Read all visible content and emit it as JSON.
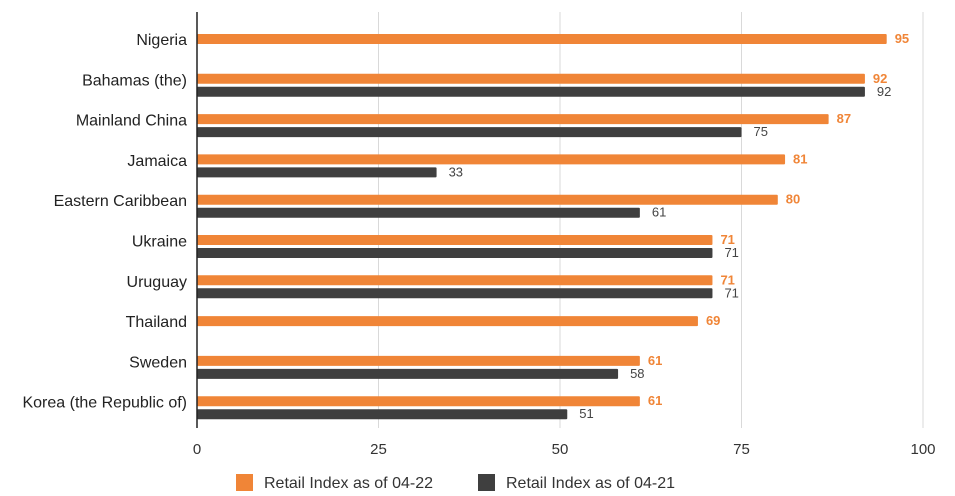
{
  "chart_data": {
    "type": "bar",
    "orientation": "horizontal",
    "categories": [
      "Nigeria",
      "Bahamas (the)",
      "Mainland China",
      "Jamaica",
      "Eastern Caribbean",
      "Ukraine",
      "Uruguay",
      "Thailand",
      "Sweden",
      "Korea (the Republic of)"
    ],
    "series": [
      {
        "name": "Retail Index as of 04-22",
        "color": "#f08537",
        "values": [
          95,
          92,
          87,
          81,
          80,
          71,
          71,
          69,
          61,
          61
        ]
      },
      {
        "name": "Retail Index as of 04-21",
        "color": "#3f3f3f",
        "values": [
          null,
          92,
          75,
          33,
          61,
          71,
          71,
          null,
          58,
          51
        ]
      }
    ],
    "xlim": [
      0,
      100
    ],
    "xticks": [
      0,
      25,
      50,
      75,
      100
    ],
    "grid": true,
    "legend_position": "bottom"
  }
}
